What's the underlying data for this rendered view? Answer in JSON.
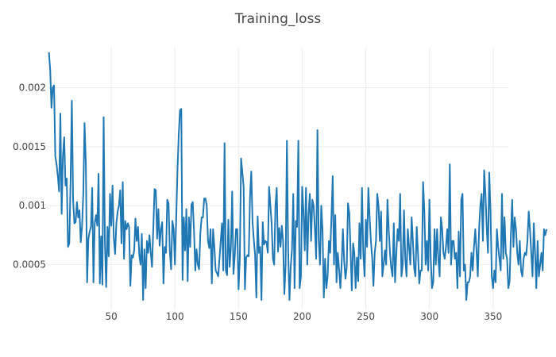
{
  "chart_data": {
    "type": "line",
    "title": "Training_loss",
    "xlabel": "",
    "ylabel": "",
    "xlim": [
      0,
      362
    ],
    "ylim": [
      0.00012,
      0.00234
    ],
    "x_ticks": [
      50,
      100,
      150,
      200,
      250,
      300,
      350
    ],
    "x_tick_labels": [
      "50",
      "100",
      "150",
      "200",
      "250",
      "300",
      "350"
    ],
    "y_ticks": [
      0.0005,
      0.001,
      0.0015,
      0.002
    ],
    "y_tick_labels": [
      "0.0005",
      "0.001",
      "0.0015",
      "0.002"
    ],
    "grid": true,
    "legend": "none",
    "series": [
      {
        "color": "#1f77b4",
        "x_start": 1,
        "x_step": 1,
        "values": [
          0.0023,
          0.00215,
          0.00183,
          0.002,
          0.00202,
          0.00142,
          0.00135,
          0.00125,
          0.00112,
          0.00178,
          0.00093,
          0.00142,
          0.00158,
          0.00117,
          0.00123,
          0.00065,
          0.00068,
          0.0012,
          0.00189,
          0.00105,
          0.00085,
          0.00086,
          0.00103,
          0.0009,
          0.00096,
          0.00069,
          0.00082,
          0.0011,
          0.0017,
          0.00136,
          0.00035,
          0.00072,
          0.00078,
          0.00082,
          0.00115,
          0.00035,
          0.00085,
          0.00092,
          0.00083,
          0.00127,
          0.00034,
          0.00074,
          0.00033,
          0.00175,
          0.00068,
          0.00031,
          0.00082,
          0.00057,
          0.0011,
          0.00083,
          0.00117,
          0.00072,
          0.00059,
          0.00085,
          0.00095,
          0.001,
          0.00113,
          0.00068,
          0.0012,
          0.00055,
          0.00087,
          0.0008,
          0.00085,
          0.00082,
          0.00032,
          0.00058,
          0.00056,
          0.00062,
          0.00089,
          0.0007,
          0.00082,
          0.00058,
          0.0005,
          0.00076,
          0.0002,
          0.00063,
          0.0003,
          0.0007,
          0.0006,
          0.00075,
          0.0006,
          0.00048,
          0.0008,
          0.00114,
          0.00113,
          0.00072,
          0.00097,
          0.00066,
          0.0008,
          0.00086,
          0.00034,
          0.00065,
          0.0006,
          0.00105,
          0.00102,
          0.00061,
          0.00046,
          0.00087,
          0.0008,
          0.0005,
          0.00088,
          0.0013,
          0.0016,
          0.00181,
          0.00182,
          0.00037,
          0.0009,
          0.00062,
          0.00097,
          0.00036,
          0.0009,
          0.00065,
          0.00101,
          0.00103,
          0.00079,
          0.00045,
          0.00063,
          0.0005,
          0.00046,
          0.00077,
          0.0009,
          0.0009,
          0.00106,
          0.00106,
          0.001,
          0.0007,
          0.00064,
          0.0008,
          0.00034,
          0.0008,
          0.00065,
          0.00045,
          0.00043,
          0.0004,
          0.00055,
          0.0007,
          0.00085,
          0.00045,
          0.00153,
          0.00045,
          0.00041,
          0.00088,
          0.00048,
          0.00065,
          0.00112,
          0.00042,
          0.00057,
          0.0008,
          0.0008,
          0.00029,
          0.00055,
          0.0014,
          0.00128,
          0.00116,
          0.00029,
          0.00056,
          0.00058,
          0.00057,
          0.00107,
          0.00129,
          0.00086,
          0.00071,
          0.00058,
          0.00022,
          0.00091,
          0.0006,
          0.00065,
          0.0002,
          0.00086,
          0.00067,
          0.0007,
          0.00069,
          0.0006,
          0.00116,
          0.001,
          0.00085,
          0.00055,
          0.0005,
          0.001,
          0.00115,
          0.00061,
          0.00081,
          0.00065,
          0.00083,
          0.0007,
          0.00025,
          0.0005,
          0.00155,
          0.00061,
          0.0002,
          0.00048,
          0.00063,
          0.0011,
          0.0003,
          0.00087,
          0.00082,
          0.00155,
          0.0003,
          0.0004,
          0.00116,
          0.00095,
          0.00062,
          0.00115,
          0.0005,
          0.00093,
          0.0011,
          0.0007,
          0.00105,
          0.001,
          0.0008,
          0.00055,
          0.00164,
          0.0007,
          0.0005,
          0.001,
          0.00079,
          0.00022,
          0.00055,
          0.0003,
          0.0004,
          0.0007,
          0.0006,
          0.0009,
          0.00125,
          0.0005,
          0.00092,
          0.00035,
          0.0006,
          0.00046,
          0.0003,
          0.0005,
          0.0008,
          0.00053,
          0.00038,
          0.00048,
          0.00102,
          0.00094,
          0.00062,
          0.00028,
          0.00068,
          0.0006,
          0.0003,
          0.00056,
          0.00036,
          0.00085,
          0.00055,
          0.00115,
          0.0006,
          0.0004,
          0.00088,
          0.00065,
          0.00115,
          0.0009,
          0.0007,
          0.00056,
          0.00032,
          0.0006,
          0.0007,
          0.0011,
          0.001,
          0.0007,
          0.00095,
          0.0004,
          0.0005,
          0.00062,
          0.0005,
          0.00105,
          0.0008,
          0.0006,
          0.00047,
          0.0004,
          0.00085,
          0.00035,
          0.0006,
          0.0008,
          0.0007,
          0.0011,
          0.0004,
          0.0005,
          0.00096,
          0.00055,
          0.0004,
          0.0008,
          0.00065,
          0.0005,
          0.0009,
          0.0007,
          0.00047,
          0.0004,
          0.00082,
          0.0006,
          0.00034,
          0.00045,
          0.00045,
          0.0012,
          0.00095,
          0.0005,
          0.0007,
          0.00045,
          0.00105,
          0.00055,
          0.0003,
          0.00035,
          0.0008,
          0.0005,
          0.0008,
          0.00055,
          0.0004,
          0.0009,
          0.0008,
          0.0006,
          0.00055,
          0.00065,
          0.0008,
          0.0006,
          0.00135,
          0.0005,
          0.0007,
          0.0007,
          0.00055,
          0.0006,
          0.0003,
          0.00078,
          0.0004,
          0.00105,
          0.0011,
          0.00045,
          0.0005,
          0.0002,
          0.00035,
          0.00035,
          0.0004,
          0.0006,
          0.00045,
          0.00065,
          0.0008,
          0.00062,
          0.0004,
          0.0008,
          0.001,
          0.0011,
          0.0007,
          0.0013,
          0.0011,
          0.00082,
          0.0006,
          0.00128,
          0.00095,
          0.0004,
          0.0003,
          0.00045,
          0.00035,
          0.0008,
          0.00065,
          0.00055,
          0.00045,
          0.0011,
          0.00055,
          0.0009,
          0.0006,
          0.00055,
          0.0003,
          0.00036,
          0.00075,
          0.00105,
          0.00065,
          0.0009,
          0.0008,
          0.0006,
          0.0005,
          0.0007,
          0.00045,
          0.0004,
          0.00055,
          0.0006,
          0.00058,
          0.0007,
          0.00095,
          0.0008,
          0.0006,
          0.0004,
          0.00085,
          0.0006,
          0.0003,
          0.0007,
          0.0004,
          0.0005,
          0.0006,
          0.00045,
          0.0008,
          0.00075,
          0.0008
        ]
      }
    ]
  }
}
